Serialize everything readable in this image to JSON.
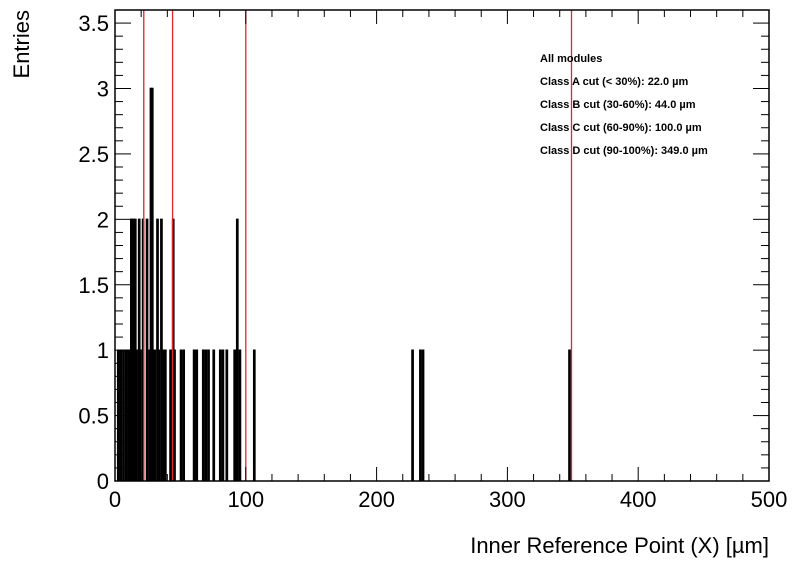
{
  "chart_data": {
    "type": "bar",
    "title": "",
    "xlabel": "Inner Reference Point (X) [µm]",
    "ylabel": "Entries",
    "xlim": [
      0,
      500
    ],
    "ylim": [
      0,
      3.6
    ],
    "x_ticks": [
      0,
      100,
      200,
      300,
      400,
      500
    ],
    "x_tick_labels": [
      "0",
      "100",
      "200",
      "300",
      "400",
      "500"
    ],
    "y_ticks": [
      0,
      0.5,
      1,
      1.5,
      2,
      2.5,
      3,
      3.5
    ],
    "y_tick_labels": [
      "0",
      "0.5",
      "1",
      "1.5",
      "2",
      "2.5",
      "3",
      "3.5"
    ],
    "bin_width": 1,
    "bins": [
      {
        "x": 2,
        "y": 1
      },
      {
        "x": 4,
        "y": 1
      },
      {
        "x": 6,
        "y": 1
      },
      {
        "x": 8,
        "y": 1
      },
      {
        "x": 10,
        "y": 1
      },
      {
        "x": 12,
        "y": 2
      },
      {
        "x": 13,
        "y": 2
      },
      {
        "x": 15,
        "y": 2
      },
      {
        "x": 16,
        "y": 1
      },
      {
        "x": 18,
        "y": 2
      },
      {
        "x": 19,
        "y": 1
      },
      {
        "x": 21,
        "y": 2
      },
      {
        "x": 24,
        "y": 2
      },
      {
        "x": 26,
        "y": 1
      },
      {
        "x": 27,
        "y": 3
      },
      {
        "x": 28,
        "y": 3
      },
      {
        "x": 29,
        "y": 1
      },
      {
        "x": 30,
        "y": 1
      },
      {
        "x": 32,
        "y": 2
      },
      {
        "x": 33,
        "y": 1
      },
      {
        "x": 35,
        "y": 2
      },
      {
        "x": 36,
        "y": 1
      },
      {
        "x": 38,
        "y": 1
      },
      {
        "x": 42,
        "y": 1
      },
      {
        "x": 44,
        "y": 2
      },
      {
        "x": 45,
        "y": 1
      },
      {
        "x": 50,
        "y": 1
      },
      {
        "x": 52,
        "y": 1
      },
      {
        "x": 60,
        "y": 1
      },
      {
        "x": 62,
        "y": 1
      },
      {
        "x": 67,
        "y": 1
      },
      {
        "x": 69,
        "y": 1
      },
      {
        "x": 71,
        "y": 1
      },
      {
        "x": 75,
        "y": 1
      },
      {
        "x": 80,
        "y": 1
      },
      {
        "x": 82,
        "y": 1
      },
      {
        "x": 85,
        "y": 1
      },
      {
        "x": 91,
        "y": 1
      },
      {
        "x": 93,
        "y": 2
      },
      {
        "x": 95,
        "y": 1
      },
      {
        "x": 106,
        "y": 1
      },
      {
        "x": 227,
        "y": 1
      },
      {
        "x": 233,
        "y": 1
      },
      {
        "x": 235,
        "y": 1
      },
      {
        "x": 347,
        "y": 1
      }
    ],
    "cut_lines": [
      22.0,
      44.0,
      100.0,
      349.0
    ],
    "cut_color": "#e8232a",
    "bar_color": "#000000",
    "grid": false,
    "legend_position": "top-right",
    "legend": [
      "All modules",
      "Class A cut (< 30%): 22.0 µm",
      "Class B cut (30-60%): 44.0 µm",
      "Class C cut (60-90%): 100.0 µm",
      "Class D cut (90-100%): 349.0 µm"
    ]
  }
}
